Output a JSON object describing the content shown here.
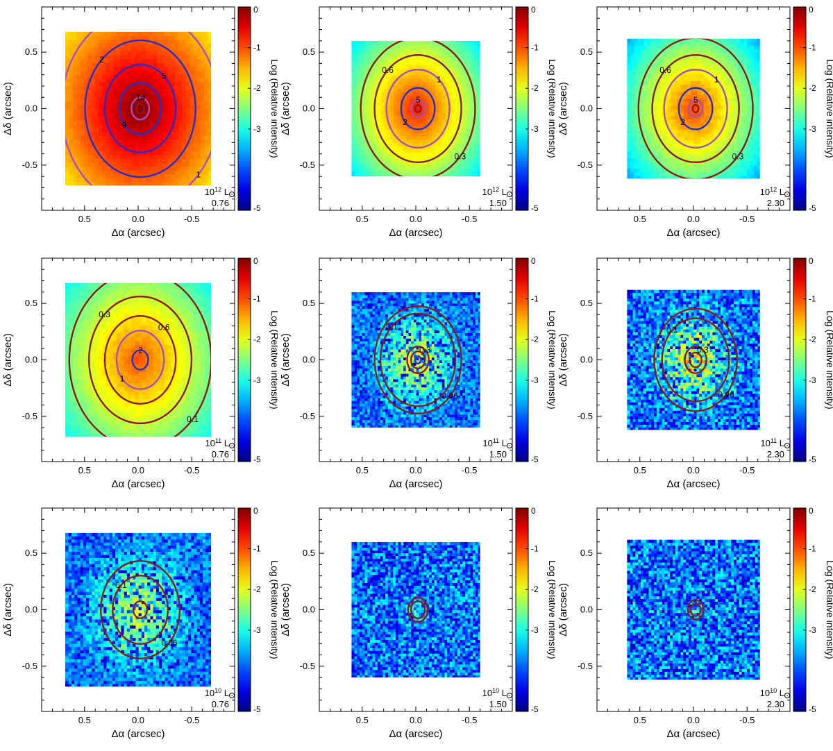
{
  "chart_data": {
    "type": "heatmap",
    "layout": "3x3 grid of simulated relative-intensity maps with contours",
    "xlabel": "Δα (arcsec)",
    "ylabel": "Δδ (arcsec)",
    "colorbar_label": "Log (Relative intensity)",
    "colorbar_ticks": [
      "0",
      "-1",
      "-2",
      "-3",
      "-5"
    ],
    "colorbar_range": [
      -5,
      0
    ],
    "x_ticks": [
      "0.5",
      "0.0",
      "-0.5"
    ],
    "y_ticks": [
      "0.5",
      "0.0",
      "-0.5"
    ],
    "x_range": [
      0.9,
      -0.9
    ],
    "y_range": [
      -0.9,
      0.9
    ],
    "x_reversed": true,
    "luminosity_unit": "L",
    "colors": {
      "contour_blue": "#1f2fd0",
      "contour_purple": "#a050c8",
      "contour_darkred": "#8b1a1a"
    },
    "panels": [
      {
        "lum_base": "10",
        "lum_exp": "12",
        "param": "0.76",
        "half_width": 0.68,
        "peak": 0.0,
        "noise": 0.05,
        "sigma": 0.65,
        "contours": [
          {
            "r": 0.8,
            "label": "1",
            "color": "purple"
          },
          {
            "r": 0.56,
            "label": "2",
            "color": "blue"
          },
          {
            "r": 0.36,
            "label": "5",
            "color": "blue"
          },
          {
            "r": 0.21,
            "label": "9",
            "color": "blue"
          },
          {
            "r": 0.09,
            "label": "14",
            "color": "purple"
          },
          {
            "r": 0.04,
            "label": "",
            "color": "darkred"
          }
        ]
      },
      {
        "lum_base": "10",
        "lum_exp": "12",
        "param": "1.50",
        "half_width": 0.6,
        "peak": -0.7,
        "noise": 0.05,
        "sigma": 0.4,
        "contours": [
          {
            "r": 0.58,
            "label": "0.3",
            "color": "darkred"
          },
          {
            "r": 0.44,
            "label": "0.6",
            "color": "darkred"
          },
          {
            "r": 0.32,
            "label": "1",
            "color": "purple"
          },
          {
            "r": 0.17,
            "label": "2",
            "color": "blue"
          },
          {
            "r": 0.07,
            "label": "5",
            "color": "purple"
          },
          {
            "r": 0.03,
            "label": "",
            "color": "darkred"
          }
        ]
      },
      {
        "lum_base": "10",
        "lum_exp": "12",
        "param": "2.30",
        "half_width": 0.62,
        "peak": -0.9,
        "noise": 0.1,
        "sigma": 0.4,
        "contours": [
          {
            "r": 0.58,
            "label": "0.3",
            "color": "darkred"
          },
          {
            "r": 0.44,
            "label": "0.6",
            "color": "darkred"
          },
          {
            "r": 0.32,
            "label": "1",
            "color": "purple"
          },
          {
            "r": 0.17,
            "label": "2",
            "color": "blue"
          },
          {
            "r": 0.07,
            "label": "5",
            "color": "purple"
          },
          {
            "r": 0.03,
            "label": "",
            "color": "darkred"
          }
        ]
      },
      {
        "lum_base": "10",
        "lum_exp": "11",
        "param": "0.76",
        "half_width": 0.68,
        "peak": -1.0,
        "noise": 0.08,
        "sigma": 0.55,
        "contours": [
          {
            "r": 0.72,
            "label": "0.1",
            "color": "darkred"
          },
          {
            "r": 0.52,
            "label": "0.3",
            "color": "darkred"
          },
          {
            "r": 0.36,
            "label": "0.6",
            "color": "darkred"
          },
          {
            "r": 0.24,
            "label": "1",
            "color": "purple"
          },
          {
            "r": 0.08,
            "label": "2",
            "color": "blue"
          }
        ]
      },
      {
        "lum_base": "10",
        "lum_exp": "11",
        "param": "1.50",
        "half_width": 0.6,
        "peak": -1.8,
        "noise": 0.5,
        "sigma": 0.32,
        "contours": [
          {
            "r": 0.44,
            "label": "0.06",
            "color": "darkred"
          },
          {
            "r": 0.38,
            "label": "0.1",
            "color": "darkred"
          },
          {
            "r": 0.11,
            "label": "0.3",
            "color": "darkred"
          },
          {
            "r": 0.07,
            "label": "",
            "color": "darkred"
          },
          {
            "r": 0.03,
            "label": "",
            "color": "blue"
          }
        ]
      },
      {
        "lum_base": "10",
        "lum_exp": "11",
        "param": "2.30",
        "half_width": 0.62,
        "peak": -1.8,
        "noise": 0.8,
        "sigma": 0.32,
        "contours": [
          {
            "r": 0.42,
            "label": "0.06",
            "color": "darkred"
          },
          {
            "r": 0.34,
            "label": "0.1",
            "color": "darkred"
          },
          {
            "r": 0.11,
            "label": "0.3",
            "color": "darkred"
          },
          {
            "r": 0.06,
            "label": "",
            "color": "darkred"
          }
        ]
      },
      {
        "lum_base": "10",
        "lum_exp": "10",
        "param": "0.76",
        "half_width": 0.68,
        "peak": -1.9,
        "noise": 0.45,
        "sigma": 0.4,
        "contours": [
          {
            "r": 0.4,
            "label": "0.06",
            "color": "darkred"
          },
          {
            "r": 0.28,
            "label": "0.1",
            "color": "darkred"
          },
          {
            "r": 0.07,
            "label": "",
            "color": "darkred"
          }
        ]
      },
      {
        "lum_base": "10",
        "lum_exp": "10",
        "param": "1.50",
        "half_width": 0.6,
        "peak": -3.0,
        "noise": 0.8,
        "sigma": 0.25,
        "contours": [
          {
            "r": 0.1,
            "label": "",
            "color": "darkred"
          },
          {
            "r": 0.07,
            "label": "",
            "color": "darkred"
          }
        ]
      },
      {
        "lum_base": "10",
        "lum_exp": "10",
        "param": "2.30",
        "half_width": 0.62,
        "peak": -3.2,
        "noise": 0.9,
        "sigma": 0.2,
        "contours": [
          {
            "r": 0.08,
            "label": "",
            "color": "darkred"
          },
          {
            "r": 0.05,
            "label": "",
            "color": "darkred"
          }
        ]
      }
    ]
  }
}
